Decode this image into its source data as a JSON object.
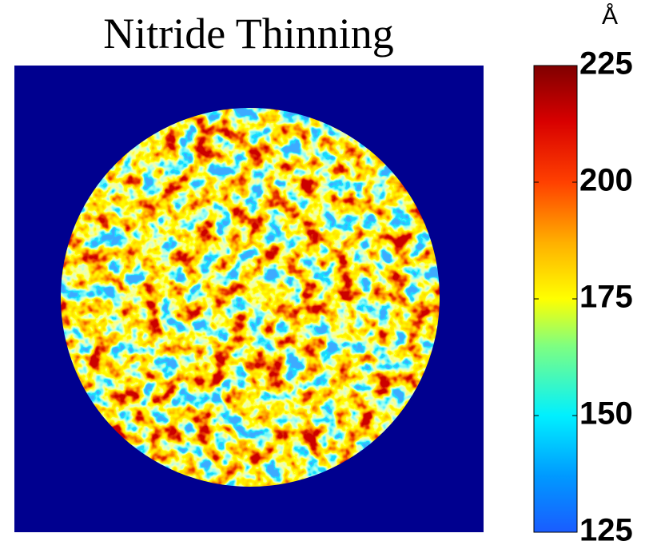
{
  "chart_data": {
    "type": "heatmap",
    "title": "Nitride Thinning",
    "colorbar": {
      "label": "Å",
      "lim": [
        125,
        225
      ],
      "ticks": [
        125,
        150,
        175,
        200,
        225
      ]
    }
  }
}
